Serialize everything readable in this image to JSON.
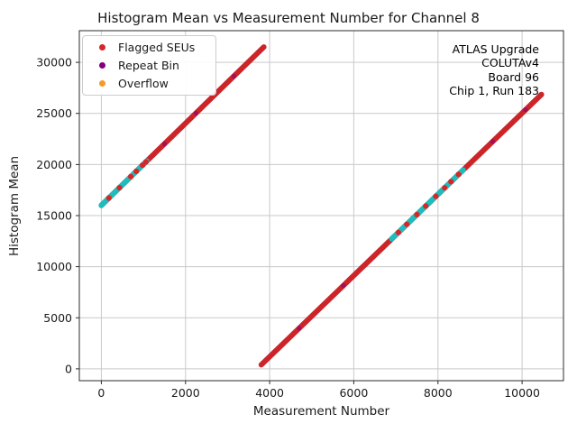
{
  "figure": {
    "title": "Histogram Mean vs Measurement Number for Channel 8"
  },
  "chart_data": {
    "type": "scatter",
    "title": "Histogram Mean vs Measurement Number for Channel 8",
    "xlabel": "Measurement Number",
    "ylabel": "Histogram Mean",
    "xlim": [
      -523,
      10983
    ],
    "ylim": [
      -1155,
      33100
    ],
    "xticks": [
      0,
      2000,
      4000,
      6000,
      8000,
      10000
    ],
    "yticks": [
      0,
      5000,
      10000,
      15000,
      20000,
      25000,
      30000
    ],
    "grid": true,
    "grid_color": "#c9c9c9",
    "frame_color": "#2b2b2b",
    "background": "#ffffff",
    "legend": {
      "position": "upper left",
      "items": [
        {
          "label": "Flagged SEUs",
          "color": "#d62728"
        },
        {
          "label": "Repeat Bin",
          "color": "#800080"
        },
        {
          "label": "Overflow",
          "color": "#f59a23"
        }
      ]
    },
    "annotation": {
      "position": "upper right",
      "align": "right",
      "lines": [
        "ATLAS Upgrade",
        "COLUTAv4",
        "Board 96",
        "Chip 1, Run 183"
      ]
    },
    "series": [
      {
        "name": "sawtooth-ramp-1",
        "role": "dense-point-ramp",
        "color": "#cc2529",
        "from": [
          0,
          16000
        ],
        "to": [
          3860,
          31500
        ],
        "marker_px": 6
      },
      {
        "name": "sawtooth-ramp-2",
        "role": "dense-point-ramp",
        "color": "#cc2529",
        "from": [
          3800,
          400
        ],
        "to": [
          10460,
          26860
        ],
        "marker_px": 6
      },
      {
        "name": "healthy-segment-1",
        "role": "dense-point-overlay",
        "color": "#1dbdbd",
        "from": [
          0,
          16000
        ],
        "to": [
          1080,
          20340
        ],
        "marker_px": 6
      },
      {
        "name": "healthy-segment-2",
        "role": "dense-point-overlay",
        "color": "#1dbdbd",
        "from": [
          6900,
          12720
        ],
        "to": [
          8600,
          19470
        ],
        "marker_px": 6
      }
    ],
    "flagged_seu_points": {
      "color": "#d62728",
      "x": [
        180,
        430,
        700,
        830,
        980,
        1060,
        7060,
        7260,
        7500,
        7710,
        7950,
        8160,
        8310,
        8490
      ],
      "y": [
        16723,
        17726,
        18811,
        19333,
        19935,
        20256,
        13352,
        14147,
        15100,
        15934,
        16888,
        17722,
        18318,
        19033
      ]
    },
    "repeat_bin_points": {
      "color": "#800080",
      "x": [
        1500,
        2250,
        3150,
        4700,
        5750,
        9300,
        10080
      ],
      "y": [
        22023,
        25034,
        28647,
        3976,
        8147,
        22251,
        25350
      ]
    }
  }
}
